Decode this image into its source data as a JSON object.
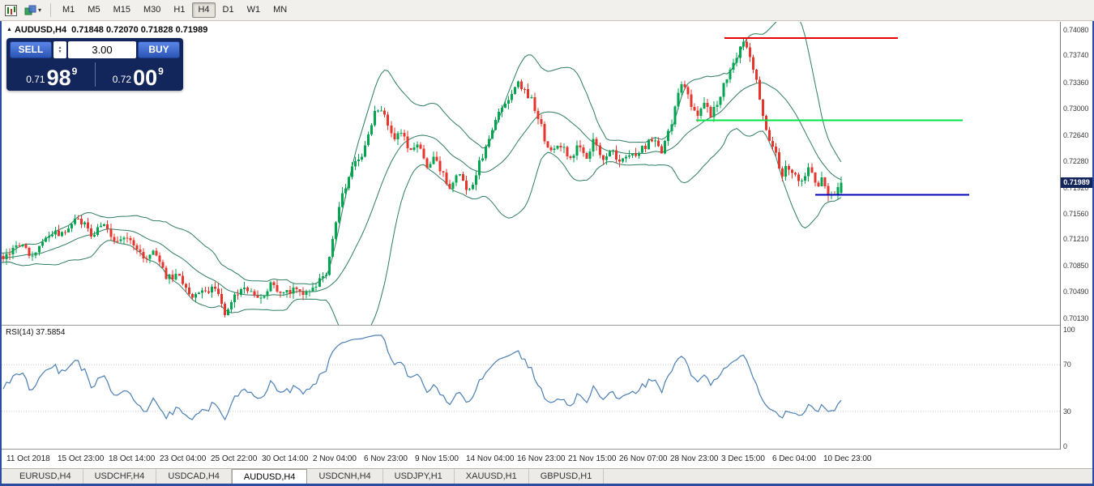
{
  "colors": {
    "up": "#00a550",
    "down": "#e5352c",
    "bollinger": "#2e7d5e",
    "rsi": "#4a7fb5",
    "badge_bg": "#13265c",
    "panel_bg": "#13265c",
    "line_red": "#e80000",
    "line_green": "#00e14a",
    "line_blue": "#0000bb",
    "frame": "#2a4da0"
  },
  "toolbar": {
    "timeframes": [
      "M1",
      "M5",
      "M15",
      "M30",
      "H1",
      "H4",
      "D1",
      "W1",
      "MN"
    ],
    "active_timeframe": "H4",
    "caret": "▾"
  },
  "chart_header": {
    "collapse_icon": "▲",
    "symbol": "AUDUSD,H4",
    "ohlc": "0.71848 0.72070 0.71828 0.71989"
  },
  "trade_panel": {
    "sell_label": "SELL",
    "buy_label": "BUY",
    "lot_value": "3.00",
    "stepper_up": "▲",
    "stepper_down": "▼",
    "bid": {
      "prefix": "0.71",
      "big": "98",
      "sup": "9"
    },
    "ask": {
      "prefix": "0.72",
      "big": "00",
      "sup": "9"
    }
  },
  "price_axis": {
    "ticks": [
      "0.74080",
      "0.73740",
      "0.73360",
      "0.73000",
      "0.72640",
      "0.72280",
      "0.71920",
      "0.71560",
      "0.71210",
      "0.70850",
      "0.70490",
      "0.70130"
    ],
    "current_label": "0.71989"
  },
  "rsi_panel": {
    "label": "RSI(14) 37.5854",
    "ticks": [
      "100",
      "70",
      "30",
      "0"
    ]
  },
  "time_axis": [
    "11 Oct 2018",
    "15 Oct 23:00",
    "18 Oct 14:00",
    "23 Oct 04:00",
    "25 Oct 22:00",
    "30 Oct 14:00",
    "2 Nov 04:00",
    "6 Nov 23:00",
    "9 Nov 15:00",
    "14 Nov 04:00",
    "16 Nov 23:00",
    "21 Nov 15:00",
    "26 Nov 07:00",
    "28 Nov 23:00",
    "3 Dec 15:00",
    "6 Dec 04:00",
    "10 Dec 23:00"
  ],
  "tabs": {
    "items": [
      "EURUSD,H4",
      "USDCHF,H4",
      "USDCAD,H4",
      "AUDUSD,H4",
      "USDCNH,H4",
      "USDJPY,H1",
      "XAUUSD,H1",
      "GBPUSD,H1"
    ],
    "active_index": 3
  },
  "chart_data": {
    "type": "candlestick",
    "symbol": "AUDUSD",
    "timeframe": "H4",
    "x_range": {
      "start": "11 Oct 2018",
      "end": "10 Dec 2018"
    },
    "y_axis": {
      "visible_min": 0.7013,
      "visible_max": 0.7408
    },
    "last": {
      "open": 0.71848,
      "high": 0.7207,
      "low": 0.71828,
      "close": 0.71989
    },
    "bollinger": {
      "period": 20,
      "deviation": 2
    },
    "rsi": {
      "period": 14,
      "last_value": 37.5854,
      "levels": [
        70,
        30
      ],
      "range": [
        0,
        100
      ]
    },
    "horizontal_lines": [
      {
        "name": "resistance-line",
        "color": "#e80000",
        "level": 0.7397,
        "x_from": 0.683,
        "x_to": 0.847,
        "width": 2
      },
      {
        "name": "mid-line",
        "color": "#00e14a",
        "level": 0.7284,
        "x_from": 0.656,
        "x_to": 0.908,
        "width": 2
      },
      {
        "name": "support-line",
        "color": "#0000bb",
        "level": 0.7182,
        "x_from": 0.769,
        "x_to": 0.914,
        "width": 2
      }
    ],
    "price_anchors": [
      [
        0.0,
        0.7095
      ],
      [
        0.02,
        0.7112
      ],
      [
        0.035,
        0.7098
      ],
      [
        0.05,
        0.7122
      ],
      [
        0.07,
        0.7132
      ],
      [
        0.09,
        0.715
      ],
      [
        0.105,
        0.7128
      ],
      [
        0.12,
        0.7138
      ],
      [
        0.135,
        0.7115
      ],
      [
        0.15,
        0.7122
      ],
      [
        0.165,
        0.7096
      ],
      [
        0.18,
        0.7103
      ],
      [
        0.195,
        0.7068
      ],
      [
        0.21,
        0.7072
      ],
      [
        0.225,
        0.7042
      ],
      [
        0.24,
        0.7056
      ],
      [
        0.255,
        0.7048
      ],
      [
        0.265,
        0.7018
      ],
      [
        0.275,
        0.7048
      ],
      [
        0.29,
        0.7055
      ],
      [
        0.305,
        0.704
      ],
      [
        0.32,
        0.7058
      ],
      [
        0.335,
        0.7045
      ],
      [
        0.35,
        0.7052
      ],
      [
        0.365,
        0.7046
      ],
      [
        0.375,
        0.7062
      ],
      [
        0.385,
        0.707
      ],
      [
        0.395,
        0.713
      ],
      [
        0.405,
        0.7185
      ],
      [
        0.415,
        0.7215
      ],
      [
        0.425,
        0.723
      ],
      [
        0.435,
        0.7258
      ],
      [
        0.445,
        0.73
      ],
      [
        0.455,
        0.7288
      ],
      [
        0.465,
        0.7262
      ],
      [
        0.475,
        0.727
      ],
      [
        0.485,
        0.724
      ],
      [
        0.495,
        0.7252
      ],
      [
        0.505,
        0.7222
      ],
      [
        0.515,
        0.7238
      ],
      [
        0.525,
        0.7208
      ],
      [
        0.535,
        0.7192
      ],
      [
        0.545,
        0.7212
      ],
      [
        0.555,
        0.7182
      ],
      [
        0.565,
        0.7215
      ],
      [
        0.578,
        0.7252
      ],
      [
        0.59,
        0.7288
      ],
      [
        0.6,
        0.7312
      ],
      [
        0.615,
        0.7335
      ],
      [
        0.628,
        0.7318
      ],
      [
        0.638,
        0.729
      ],
      [
        0.646,
        0.7258
      ],
      [
        0.655,
        0.7238
      ],
      [
        0.665,
        0.7252
      ],
      [
        0.675,
        0.723
      ],
      [
        0.685,
        0.7248
      ],
      [
        0.695,
        0.7232
      ],
      [
        0.705,
        0.7256
      ],
      [
        0.715,
        0.7234
      ],
      [
        0.725,
        0.7245
      ],
      [
        0.735,
        0.7228
      ],
      [
        0.745,
        0.724
      ],
      [
        0.755,
        0.7232
      ],
      [
        0.765,
        0.7248
      ],
      [
        0.775,
        0.726
      ],
      [
        0.785,
        0.724
      ],
      [
        0.795,
        0.7268
      ],
      [
        0.805,
        0.7325
      ],
      [
        0.812,
        0.7338
      ],
      [
        0.82,
        0.731
      ],
      [
        0.828,
        0.7285
      ],
      [
        0.836,
        0.731
      ],
      [
        0.845,
        0.7292
      ],
      [
        0.855,
        0.7318
      ],
      [
        0.865,
        0.7348
      ],
      [
        0.875,
        0.7372
      ],
      [
        0.885,
        0.7392
      ],
      [
        0.893,
        0.7368
      ],
      [
        0.9,
        0.733
      ],
      [
        0.907,
        0.729
      ],
      [
        0.915,
        0.7258
      ],
      [
        0.923,
        0.7232
      ],
      [
        0.93,
        0.7212
      ],
      [
        0.94,
        0.7222
      ],
      [
        0.948,
        0.7198
      ],
      [
        0.956,
        0.7208
      ],
      [
        0.964,
        0.7218
      ],
      [
        0.972,
        0.7192
      ],
      [
        0.978,
        0.7205
      ],
      [
        0.985,
        0.718
      ],
      [
        0.992,
        0.7186
      ],
      [
        1.0,
        0.7199
      ]
    ]
  }
}
